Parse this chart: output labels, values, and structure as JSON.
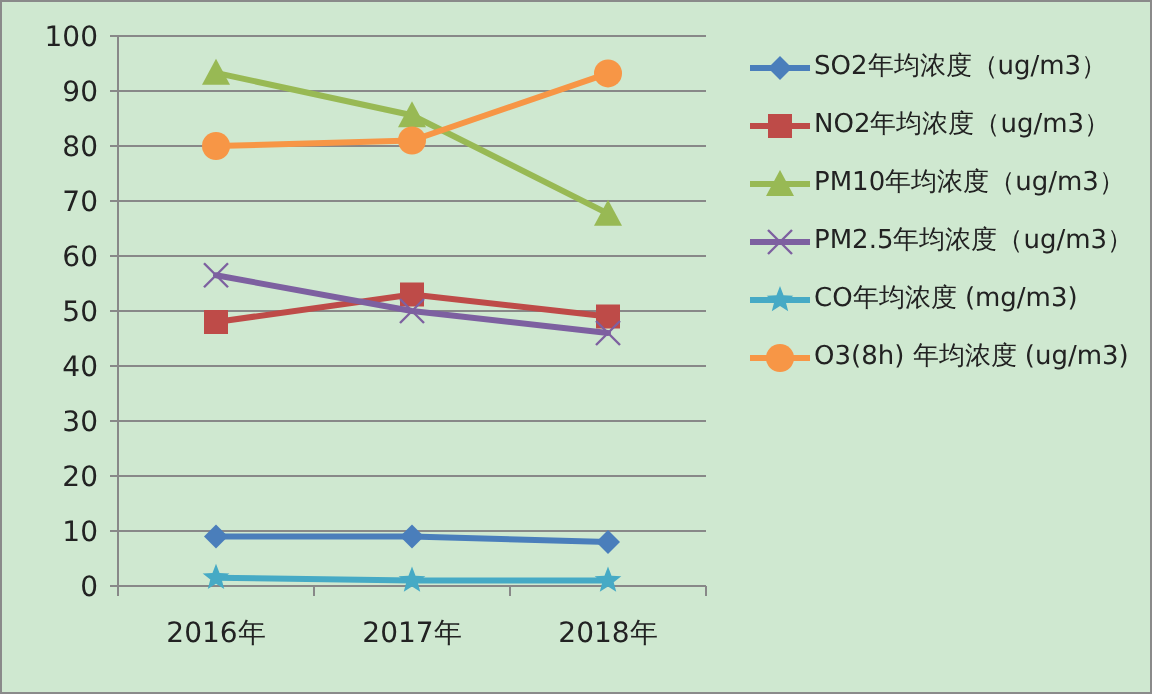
{
  "chart_data": {
    "type": "line",
    "categories": [
      "2016年",
      "2017年",
      "2018年"
    ],
    "ylim": [
      0,
      100
    ],
    "yticks": [
      0,
      10,
      20,
      30,
      40,
      50,
      60,
      70,
      80,
      90,
      100
    ],
    "grid": "y",
    "legend": "right",
    "series": [
      {
        "name": "SO2年均浓度（ug/m3）",
        "color": "#4a7ebb",
        "marker": "diamond",
        "values": [
          9,
          9,
          8
        ]
      },
      {
        "name": "NO2年均浓度（ug/m3）",
        "color": "#be4b48",
        "marker": "square",
        "values": [
          48,
          53,
          49
        ]
      },
      {
        "name": "PM10年均浓度（ug/m3）",
        "color": "#98b954",
        "marker": "triangle",
        "values": [
          93.3,
          85.6,
          67.7
        ]
      },
      {
        "name": "PM2.5年均浓度（ug/m3）",
        "color": "#7d60a0",
        "marker": "cross",
        "values": [
          56.5,
          50,
          46
        ]
      },
      {
        "name": "CO年均浓度 (mg/m3)",
        "color": "#46aac5",
        "marker": "star",
        "values": [
          1.5,
          1,
          1
        ]
      },
      {
        "name": "O3(8h) 年均浓度 (ug/m3)",
        "color": "#f79646",
        "marker": "circle",
        "values": [
          80,
          81,
          93.2
        ]
      }
    ]
  }
}
